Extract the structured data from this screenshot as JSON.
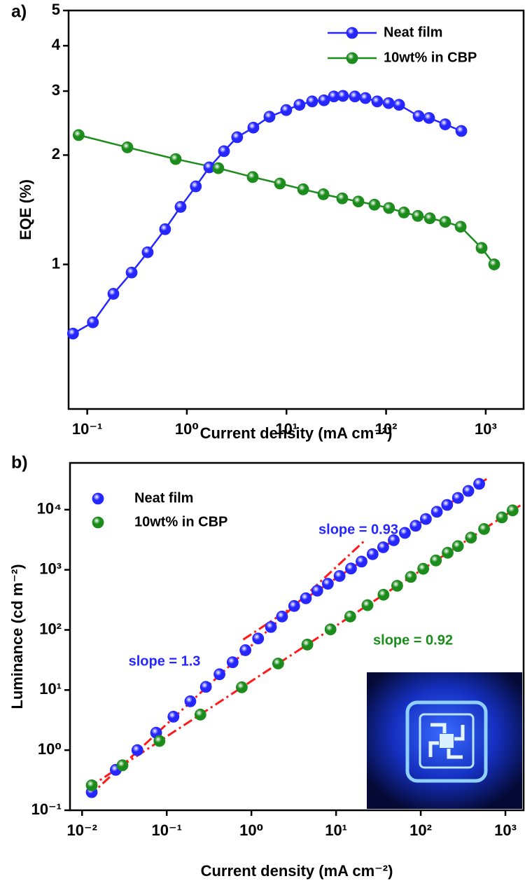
{
  "chart_data": [
    {
      "type": "line",
      "label": "a)",
      "xlabel": "Current density (mA cm⁻²)",
      "ylabel": "EQE (%)",
      "xscale": "log",
      "yscale": "log",
      "xlim": [
        0.065,
        2400
      ],
      "ylim": [
        0.4,
        5
      ],
      "xticks": [
        {
          "value": 0.1,
          "label": "10⁻¹"
        },
        {
          "value": 1,
          "label": "10⁰"
        },
        {
          "value": 10,
          "label": "10¹"
        },
        {
          "value": 100,
          "label": "10²"
        },
        {
          "value": 1000,
          "label": "10³"
        }
      ],
      "yticks": [
        1,
        2,
        3,
        4,
        5
      ],
      "legend": "upper right",
      "series": [
        {
          "name": "Neat film",
          "color": "#2626ff",
          "line": "solid",
          "marker": "circle",
          "x": [
            0.072,
            0.114,
            0.183,
            0.279,
            0.404,
            0.605,
            0.865,
            1.23,
            1.68,
            2.36,
            3.2,
            4.65,
            6.75,
            9.95,
            13.5,
            18.1,
            23.8,
            29.9,
            36.9,
            48.6,
            62,
            81.5,
            106,
            135,
            212,
            270,
            392,
            569
          ],
          "values": [
            0.645,
            0.693,
            0.83,
            0.95,
            1.08,
            1.25,
            1.44,
            1.64,
            1.85,
            2.05,
            2.24,
            2.38,
            2.55,
            2.66,
            2.75,
            2.81,
            2.83,
            2.9,
            2.91,
            2.9,
            2.87,
            2.81,
            2.78,
            2.75,
            2.56,
            2.53,
            2.43,
            2.33
          ]
        },
        {
          "name": "10wt% in CBP",
          "color": "#1c8c1c",
          "line": "solid",
          "marker": "circle",
          "x": [
            0.082,
            0.253,
            0.772,
            2.07,
            4.58,
            8.6,
            14.7,
            23.5,
            36.3,
            52.7,
            76.4,
            107,
            151,
            208,
            275,
            392,
            560,
            909,
            1217
          ],
          "values": [
            2.27,
            2.1,
            1.95,
            1.84,
            1.74,
            1.67,
            1.61,
            1.56,
            1.52,
            1.49,
            1.46,
            1.43,
            1.39,
            1.36,
            1.34,
            1.31,
            1.27,
            1.11,
            1.0
          ]
        }
      ]
    },
    {
      "type": "scatter",
      "label": "b)",
      "xlabel": "Current density (mA cm⁻²)",
      "ylabel": "Luminance (cd m⁻²)",
      "xscale": "log",
      "yscale": "log",
      "xlim": [
        0.0072,
        1640
      ],
      "ylim": [
        0.1,
        60000
      ],
      "xticks": [
        {
          "value": 0.01,
          "label": "10⁻²"
        },
        {
          "value": 0.1,
          "label": "10⁻¹"
        },
        {
          "value": 1,
          "label": "10⁰"
        },
        {
          "value": 10,
          "label": "10¹"
        },
        {
          "value": 100,
          "label": "10²"
        },
        {
          "value": 1000,
          "label": "10³"
        }
      ],
      "yticks": [
        {
          "value": 0.1,
          "label": "10⁻¹"
        },
        {
          "value": 1,
          "label": "10⁰"
        },
        {
          "value": 10,
          "label": "10¹"
        },
        {
          "value": 100,
          "label": "10²"
        },
        {
          "value": 1000,
          "label": "10³"
        },
        {
          "value": 10000,
          "label": "10⁴"
        }
      ],
      "legend": "upper left",
      "series": [
        {
          "name": "Neat film",
          "color": "#2626ff",
          "marker": "circle",
          "x": [
            0.013,
            0.025,
            0.045,
            0.075,
            0.12,
            0.19,
            0.29,
            0.42,
            0.6,
            0.85,
            1.2,
            1.7,
            2.3,
            3.2,
            4.4,
            6,
            8,
            11,
            15,
            20,
            27,
            36,
            48,
            65,
            87,
            115,
            155,
            205,
            275,
            365,
            490
          ],
          "values": [
            0.2,
            0.47,
            1.0,
            1.95,
            3.6,
            6.5,
            11.3,
            18.3,
            29,
            46,
            72,
            112,
            167,
            250,
            336,
            449,
            586,
            789,
            1050,
            1370,
            1820,
            2370,
            3100,
            4110,
            5400,
            7000,
            9230,
            12000,
            15700,
            20500,
            26900
          ]
        },
        {
          "name": "10wt% in CBP",
          "color": "#1c8c1c",
          "marker": "circle",
          "x": [
            0.013,
            0.03,
            0.082,
            0.25,
            0.77,
            2.07,
            4.58,
            8.6,
            14.7,
            23.5,
            36.3,
            52.7,
            76.4,
            107,
            151,
            208,
            275,
            392,
            560,
            909,
            1217
          ],
          "values": [
            0.26,
            0.56,
            1.42,
            3.9,
            11.1,
            27.6,
            57,
            102,
            167,
            258,
            385,
            542,
            762,
            1040,
            1430,
            1920,
            2480,
            3430,
            4770,
            7450,
            9730
          ]
        },
        {
          "color": "#ff1a1a",
          "line": "dash-dot",
          "x": [
            0.012,
            22
          ],
          "values": [
            0.17,
            3100
          ]
        },
        {
          "color": "#ff1a1a",
          "line": "dash-dot",
          "x": [
            0.8,
            600
          ],
          "values": [
            69,
            32500
          ]
        },
        {
          "color": "#ff1a1a",
          "line": "dash-dot",
          "x": [
            0.012,
            1500
          ],
          "values": [
            0.24,
            11800
          ]
        }
      ],
      "annotations": [
        {
          "text": "slope = 0.93",
          "color": "#2626ff"
        },
        {
          "text": "slope = 1.3",
          "color": "#2626ff"
        },
        {
          "text": "slope = 0.92",
          "color": "#1c8c1c"
        }
      ]
    }
  ]
}
